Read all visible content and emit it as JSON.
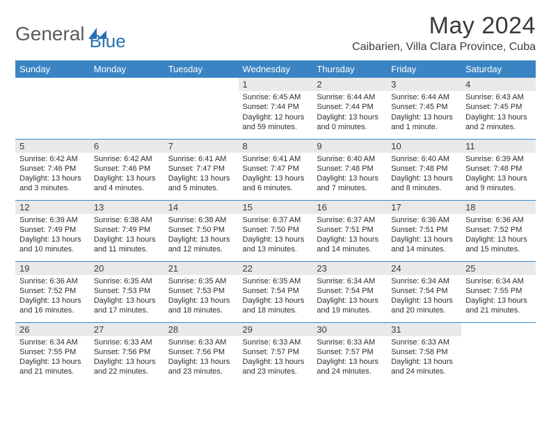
{
  "logo": {
    "word1": "General",
    "word2": "Blue"
  },
  "title": "May 2024",
  "location": "Caibarien, Villa Clara Province, Cuba",
  "colors": {
    "header_bg": "#3b84c4",
    "header_text": "#ffffff",
    "daynum_bg": "#e9e9e9",
    "rule": "#3b84c4",
    "logo_grey": "#5a5a5a",
    "logo_blue": "#2a6fb5"
  },
  "columns": [
    "Sunday",
    "Monday",
    "Tuesday",
    "Wednesday",
    "Thursday",
    "Friday",
    "Saturday"
  ],
  "weeks": [
    [
      {
        "n": "",
        "sr": "",
        "ss": "",
        "dl": ""
      },
      {
        "n": "",
        "sr": "",
        "ss": "",
        "dl": ""
      },
      {
        "n": "",
        "sr": "",
        "ss": "",
        "dl": ""
      },
      {
        "n": "1",
        "sr": "6:45 AM",
        "ss": "7:44 PM",
        "dl": "12 hours and 59 minutes."
      },
      {
        "n": "2",
        "sr": "6:44 AM",
        "ss": "7:44 PM",
        "dl": "13 hours and 0 minutes."
      },
      {
        "n": "3",
        "sr": "6:44 AM",
        "ss": "7:45 PM",
        "dl": "13 hours and 1 minute."
      },
      {
        "n": "4",
        "sr": "6:43 AM",
        "ss": "7:45 PM",
        "dl": "13 hours and 2 minutes."
      }
    ],
    [
      {
        "n": "5",
        "sr": "6:42 AM",
        "ss": "7:46 PM",
        "dl": "13 hours and 3 minutes."
      },
      {
        "n": "6",
        "sr": "6:42 AM",
        "ss": "7:46 PM",
        "dl": "13 hours and 4 minutes."
      },
      {
        "n": "7",
        "sr": "6:41 AM",
        "ss": "7:47 PM",
        "dl": "13 hours and 5 minutes."
      },
      {
        "n": "8",
        "sr": "6:41 AM",
        "ss": "7:47 PM",
        "dl": "13 hours and 6 minutes."
      },
      {
        "n": "9",
        "sr": "6:40 AM",
        "ss": "7:48 PM",
        "dl": "13 hours and 7 minutes."
      },
      {
        "n": "10",
        "sr": "6:40 AM",
        "ss": "7:48 PM",
        "dl": "13 hours and 8 minutes."
      },
      {
        "n": "11",
        "sr": "6:39 AM",
        "ss": "7:48 PM",
        "dl": "13 hours and 9 minutes."
      }
    ],
    [
      {
        "n": "12",
        "sr": "6:39 AM",
        "ss": "7:49 PM",
        "dl": "13 hours and 10 minutes."
      },
      {
        "n": "13",
        "sr": "6:38 AM",
        "ss": "7:49 PM",
        "dl": "13 hours and 11 minutes."
      },
      {
        "n": "14",
        "sr": "6:38 AM",
        "ss": "7:50 PM",
        "dl": "13 hours and 12 minutes."
      },
      {
        "n": "15",
        "sr": "6:37 AM",
        "ss": "7:50 PM",
        "dl": "13 hours and 13 minutes."
      },
      {
        "n": "16",
        "sr": "6:37 AM",
        "ss": "7:51 PM",
        "dl": "13 hours and 14 minutes."
      },
      {
        "n": "17",
        "sr": "6:36 AM",
        "ss": "7:51 PM",
        "dl": "13 hours and 14 minutes."
      },
      {
        "n": "18",
        "sr": "6:36 AM",
        "ss": "7:52 PM",
        "dl": "13 hours and 15 minutes."
      }
    ],
    [
      {
        "n": "19",
        "sr": "6:36 AM",
        "ss": "7:52 PM",
        "dl": "13 hours and 16 minutes."
      },
      {
        "n": "20",
        "sr": "6:35 AM",
        "ss": "7:53 PM",
        "dl": "13 hours and 17 minutes."
      },
      {
        "n": "21",
        "sr": "6:35 AM",
        "ss": "7:53 PM",
        "dl": "13 hours and 18 minutes."
      },
      {
        "n": "22",
        "sr": "6:35 AM",
        "ss": "7:54 PM",
        "dl": "13 hours and 18 minutes."
      },
      {
        "n": "23",
        "sr": "6:34 AM",
        "ss": "7:54 PM",
        "dl": "13 hours and 19 minutes."
      },
      {
        "n": "24",
        "sr": "6:34 AM",
        "ss": "7:54 PM",
        "dl": "13 hours and 20 minutes."
      },
      {
        "n": "25",
        "sr": "6:34 AM",
        "ss": "7:55 PM",
        "dl": "13 hours and 21 minutes."
      }
    ],
    [
      {
        "n": "26",
        "sr": "6:34 AM",
        "ss": "7:55 PM",
        "dl": "13 hours and 21 minutes."
      },
      {
        "n": "27",
        "sr": "6:33 AM",
        "ss": "7:56 PM",
        "dl": "13 hours and 22 minutes."
      },
      {
        "n": "28",
        "sr": "6:33 AM",
        "ss": "7:56 PM",
        "dl": "13 hours and 23 minutes."
      },
      {
        "n": "29",
        "sr": "6:33 AM",
        "ss": "7:57 PM",
        "dl": "13 hours and 23 minutes."
      },
      {
        "n": "30",
        "sr": "6:33 AM",
        "ss": "7:57 PM",
        "dl": "13 hours and 24 minutes."
      },
      {
        "n": "31",
        "sr": "6:33 AM",
        "ss": "7:58 PM",
        "dl": "13 hours and 24 minutes."
      },
      {
        "n": "",
        "sr": "",
        "ss": "",
        "dl": ""
      }
    ]
  ],
  "labels": {
    "sunrise": "Sunrise:",
    "sunset": "Sunset:",
    "daylight": "Daylight:"
  }
}
